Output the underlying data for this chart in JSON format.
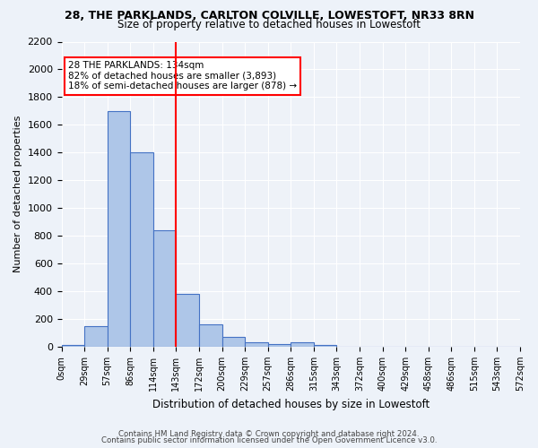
{
  "title1": "28, THE PARKLANDS, CARLTON COLVILLE, LOWESTOFT, NR33 8RN",
  "title2": "Size of property relative to detached houses in Lowestoft",
  "xlabel": "Distribution of detached houses by size in Lowestoft",
  "ylabel_full": "Number of detached properties",
  "bin_labels": [
    "0sqm",
    "29sqm",
    "57sqm",
    "86sqm",
    "114sqm",
    "143sqm",
    "172sqm",
    "200sqm",
    "229sqm",
    "257sqm",
    "286sqm",
    "315sqm",
    "343sqm",
    "372sqm",
    "400sqm",
    "429sqm",
    "458sqm",
    "486sqm",
    "515sqm",
    "543sqm",
    "572sqm"
  ],
  "bar_heights": [
    10,
    150,
    1700,
    1400,
    840,
    380,
    160,
    70,
    30,
    20,
    30,
    15,
    0,
    0,
    0,
    0,
    0,
    0,
    0,
    0
  ],
  "bar_color": "#aec6e8",
  "bar_edge_color": "#4472c4",
  "fig_background_color": "#edf2f9",
  "ax_background_color": "#eef2f8",
  "grid_color": "#ffffff",
  "red_line_x": 4.97,
  "annotation_line1": "28 THE PARKLANDS: 134sqm",
  "annotation_line2": "82% of detached houses are smaller (3,893)",
  "annotation_line3": "18% of semi-detached houses are larger (878) →",
  "ylim": [
    0,
    2200
  ],
  "yticks": [
    0,
    200,
    400,
    600,
    800,
    1000,
    1200,
    1400,
    1600,
    1800,
    2000,
    2200
  ],
  "footer1": "Contains HM Land Registry data © Crown copyright and database right 2024.",
  "footer2": "Contains public sector information licensed under the Open Government Licence v3.0."
}
